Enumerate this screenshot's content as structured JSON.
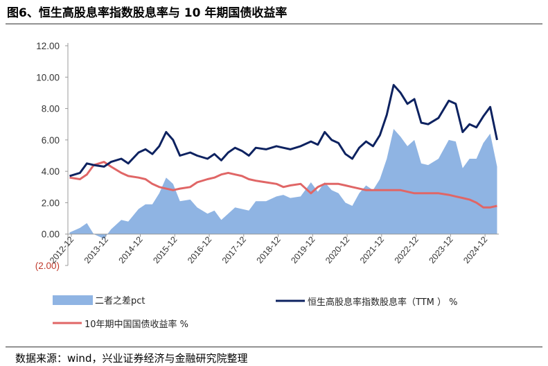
{
  "header": {
    "title": "图6、恒生高股息率指数股息率与 10 年期国债收益率"
  },
  "footer": {
    "source": "数据来源：wind，兴业证券经济与金融研究院整理"
  },
  "chart_data": {
    "type": "line",
    "title": "图6、恒生高股息率指数股息率与 10 年期国债收益率",
    "xlabel": "",
    "ylabel": "",
    "ylim": [
      -2,
      12
    ],
    "y_ticks": [
      "12.00",
      "10.00",
      "8.00",
      "6.00",
      "4.00",
      "2.00",
      "0.00",
      "(2.00)"
    ],
    "x_ticks": [
      "2012-12",
      "2013-12",
      "2014-12",
      "2015-12",
      "2016-12",
      "2017-12",
      "2018-12",
      "2019-12",
      "2020-12",
      "2021-12",
      "2022-12",
      "2023-12",
      "2024-12"
    ],
    "legend": {
      "position": "bottom",
      "items": [
        {
          "name": "二者之差pct",
          "style": "area"
        },
        {
          "name": "恒生高股息率指数股息率（TTM ） %",
          "style": "line"
        },
        {
          "name": "10年期中国国债收益率  %",
          "style": "line"
        }
      ]
    },
    "colors": {
      "spread": "#8fb4e3",
      "dividend": "#0d2260",
      "bond": "#e06666"
    },
    "x": [
      2012.9,
      2013.2,
      2013.4,
      2013.6,
      2013.9,
      2014.1,
      2014.4,
      2014.6,
      2014.9,
      2015.1,
      2015.3,
      2015.5,
      2015.7,
      2015.9,
      2016.1,
      2016.4,
      2016.6,
      2016.9,
      2017.1,
      2017.3,
      2017.5,
      2017.7,
      2017.9,
      2018.1,
      2018.3,
      2018.6,
      2018.9,
      2019.1,
      2019.3,
      2019.6,
      2019.9,
      2020.1,
      2020.3,
      2020.5,
      2020.7,
      2020.9,
      2021.1,
      2021.3,
      2021.5,
      2021.7,
      2021.9,
      2022.1,
      2022.3,
      2022.5,
      2022.7,
      2022.9,
      2023.1,
      2023.3,
      2023.6,
      2023.9,
      2024.1,
      2024.3,
      2024.5,
      2024.7,
      2024.9,
      2025.1,
      2025.3
    ],
    "series": [
      {
        "name": "恒生高股息率指数股息率（TTM ） %",
        "values": [
          3.7,
          3.9,
          4.5,
          4.4,
          4.3,
          4.6,
          4.8,
          4.5,
          5.2,
          5.4,
          5.1,
          5.6,
          6.5,
          6.0,
          5.0,
          5.2,
          5.0,
          4.8,
          5.1,
          4.7,
          5.2,
          5.5,
          5.3,
          5.0,
          5.5,
          5.4,
          5.6,
          5.5,
          5.4,
          5.6,
          5.9,
          5.7,
          6.5,
          6.0,
          5.8,
          5.1,
          4.8,
          5.5,
          5.9,
          5.6,
          6.3,
          7.6,
          9.5,
          9.0,
          8.3,
          8.6,
          7.1,
          7.0,
          7.4,
          8.5,
          8.3,
          6.5,
          7.0,
          6.8,
          7.5,
          8.1,
          6.0
        ]
      },
      {
        "name": "10年期中国国债收益率  %",
        "values": [
          3.6,
          3.5,
          3.8,
          4.4,
          4.6,
          4.3,
          3.9,
          3.7,
          3.6,
          3.5,
          3.2,
          3.0,
          2.9,
          2.8,
          2.9,
          3.0,
          3.3,
          3.5,
          3.6,
          3.8,
          3.9,
          3.8,
          3.7,
          3.5,
          3.4,
          3.3,
          3.2,
          3.0,
          3.1,
          3.2,
          2.6,
          3.0,
          3.2,
          3.2,
          3.2,
          3.1,
          3.0,
          2.9,
          2.8,
          2.8,
          2.8,
          2.8,
          2.8,
          2.8,
          2.7,
          2.6,
          2.6,
          2.6,
          2.6,
          2.5,
          2.4,
          2.3,
          2.2,
          2.0,
          1.7,
          1.7,
          1.8
        ]
      },
      {
        "name": "二者之差pct",
        "values": [
          0.1,
          0.4,
          0.7,
          0.0,
          -0.3,
          0.3,
          0.9,
          0.8,
          1.6,
          1.9,
          1.9,
          2.6,
          3.6,
          3.2,
          2.1,
          2.2,
          1.7,
          1.3,
          1.5,
          0.9,
          1.3,
          1.7,
          1.6,
          1.5,
          2.1,
          2.1,
          2.4,
          2.5,
          2.3,
          2.4,
          3.3,
          2.7,
          3.3,
          2.8,
          2.6,
          2.0,
          1.8,
          2.6,
          3.1,
          2.8,
          3.5,
          4.8,
          6.7,
          6.2,
          5.6,
          6.0,
          4.5,
          4.4,
          4.8,
          6.0,
          5.9,
          4.2,
          4.8,
          4.8,
          5.8,
          6.4,
          4.3
        ]
      }
    ]
  }
}
